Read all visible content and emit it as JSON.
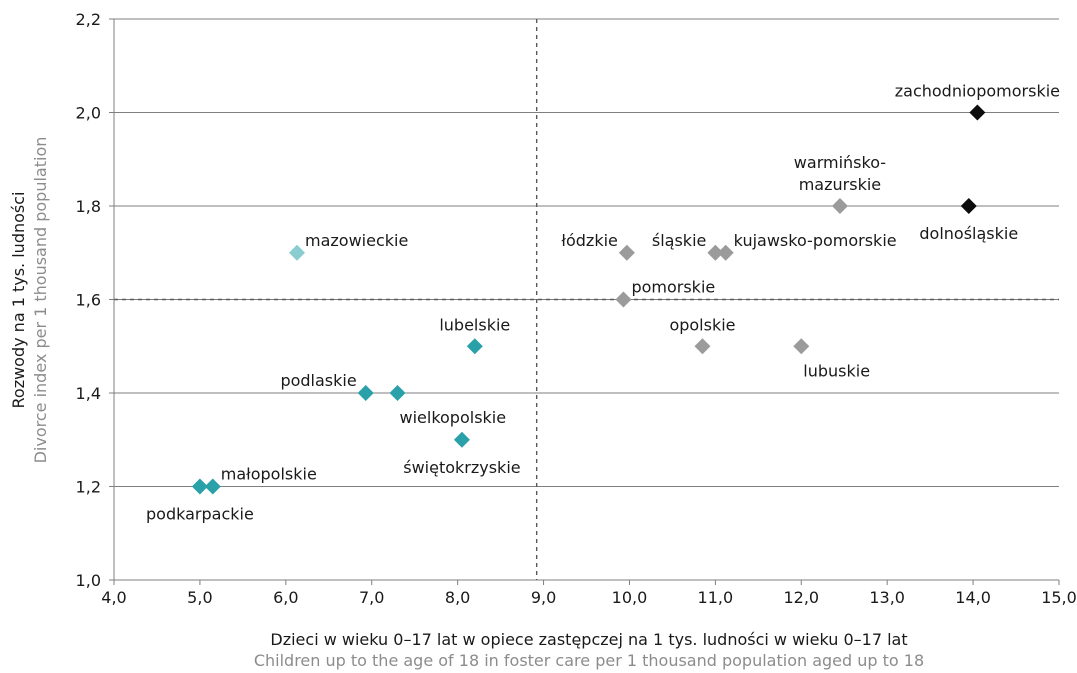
{
  "chart_data": {
    "type": "scatter",
    "title": "",
    "xlabel": "Dzieci w wieku 0–17 lat w opiece zastępczej na 1 tys. ludności w wieku 0–17 lat",
    "xlabel_en": "Children up to the age of 18 in foster care per 1 thousand population aged up to 18",
    "ylabel": "Rozwody na 1 tys. ludności",
    "ylabel_en": "Divorce index per 1 thousand population",
    "xlim": [
      4.0,
      15.0
    ],
    "ylim": [
      1.0,
      2.2
    ],
    "x_ticks": [
      4.0,
      5.0,
      6.0,
      7.0,
      8.0,
      9.0,
      10.0,
      11.0,
      12.0,
      13.0,
      14.0,
      15.0
    ],
    "y_ticks": [
      1.0,
      1.2,
      1.4,
      1.6,
      1.8,
      2.0,
      2.2
    ],
    "x_tick_labels": [
      "4,0",
      "5,0",
      "6,0",
      "7,0",
      "8,0",
      "9,0",
      "10,0",
      "11,0",
      "12,0",
      "13,0",
      "14,0",
      "15,0"
    ],
    "y_tick_labels": [
      "1,0",
      "1,2",
      "1,4",
      "1,6",
      "1,8",
      "2,0",
      "2,2"
    ],
    "grid": "horizontal",
    "reference_lines": {
      "x": 8.92,
      "y": 1.6
    },
    "colors": {
      "teal": "#2aa1a9",
      "light_teal": "#8acdd1",
      "gray": "#9b9b9b",
      "black": "#0d0d0d"
    },
    "points": [
      {
        "label": "zachodniopomorskie",
        "x": 14.05,
        "y": 2.0,
        "color": "black",
        "label_pos": "above"
      },
      {
        "label": "dolnośląskie",
        "x": 13.95,
        "y": 1.8,
        "color": "black",
        "label_pos": "below"
      },
      {
        "label": "warmińsko-\nmazurskie",
        "x": 12.45,
        "y": 1.8,
        "color": "gray",
        "label_pos": "above"
      },
      {
        "label": "kujawsko-pomorskie",
        "x": 11.12,
        "y": 1.7,
        "color": "gray",
        "label_pos": "right-up"
      },
      {
        "label": "śląskie",
        "x": 11.0,
        "y": 1.7,
        "color": "gray",
        "label_pos": "left-up"
      },
      {
        "label": "łódzkie",
        "x": 9.97,
        "y": 1.7,
        "color": "gray",
        "label_pos": "left-up"
      },
      {
        "label": "pomorskie",
        "x": 9.93,
        "y": 1.6,
        "color": "gray",
        "label_pos": "right-up"
      },
      {
        "label": "opolskie",
        "x": 10.85,
        "y": 1.5,
        "color": "gray",
        "label_pos": "above"
      },
      {
        "label": "lubuskie",
        "x": 12.0,
        "y": 1.5,
        "color": "gray",
        "label_pos": "below-right"
      },
      {
        "label": "mazowieckie",
        "x": 6.13,
        "y": 1.7,
        "color": "light_teal",
        "label_pos": "right-up"
      },
      {
        "label": "lubelskie",
        "x": 8.2,
        "y": 1.5,
        "color": "teal",
        "label_pos": "above"
      },
      {
        "label": "podlaskie",
        "x": 6.93,
        "y": 1.4,
        "color": "teal",
        "label_pos": "left-up"
      },
      {
        "label": "wielkopolskie",
        "x": 7.3,
        "y": 1.4,
        "color": "teal",
        "label_pos": "below-right"
      },
      {
        "label": "świętokrzyskie",
        "x": 8.05,
        "y": 1.3,
        "color": "teal",
        "label_pos": "below"
      },
      {
        "label": "małopolskie",
        "x": 5.15,
        "y": 1.2,
        "color": "teal",
        "label_pos": "right-up"
      },
      {
        "label": "podkarpackie",
        "x": 5.0,
        "y": 1.2,
        "color": "teal",
        "label_pos": "below"
      }
    ]
  }
}
